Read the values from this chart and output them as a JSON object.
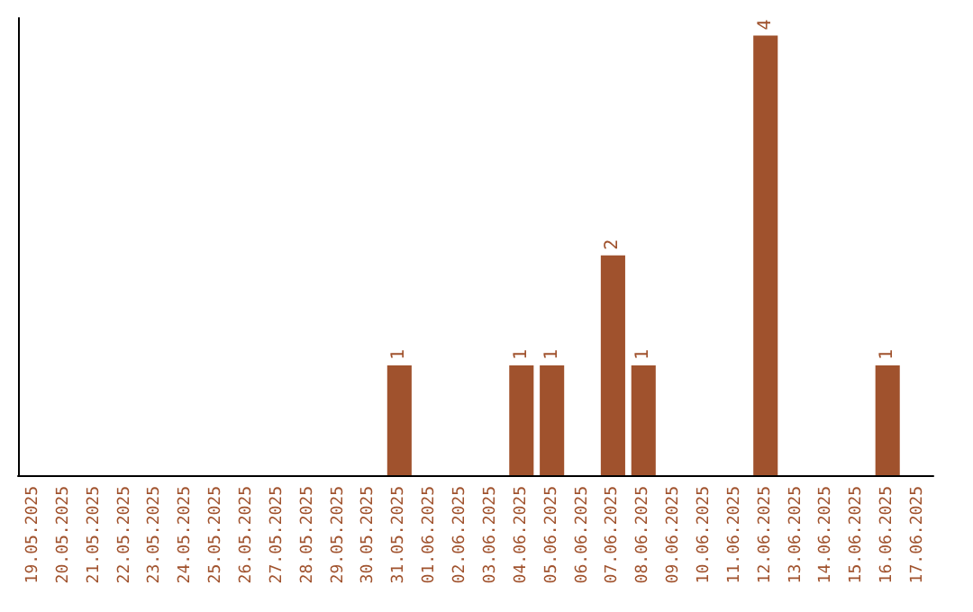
{
  "chart_data": {
    "type": "bar",
    "categories": [
      "19.05.2025",
      "20.05.2025",
      "21.05.2025",
      "22.05.2025",
      "23.05.2025",
      "24.05.2025",
      "25.05.2025",
      "26.05.2025",
      "27.05.2025",
      "28.05.2025",
      "29.05.2025",
      "30.05.2025",
      "31.05.2025",
      "01.06.2025",
      "02.06.2025",
      "03.06.2025",
      "04.06.2025",
      "05.06.2025",
      "06.06.2025",
      "07.06.2025",
      "08.06.2025",
      "09.06.2025",
      "10.06.2025",
      "11.06.2025",
      "12.06.2025",
      "13.06.2025",
      "14.06.2025",
      "15.06.2025",
      "16.06.2025",
      "17.06.2025"
    ],
    "values": [
      null,
      null,
      null,
      null,
      null,
      null,
      null,
      null,
      null,
      null,
      null,
      null,
      1,
      null,
      null,
      null,
      1,
      1,
      null,
      2,
      1,
      null,
      null,
      null,
      4,
      null,
      null,
      null,
      1,
      null
    ],
    "data_labels": true,
    "color": "#a0522d"
  }
}
